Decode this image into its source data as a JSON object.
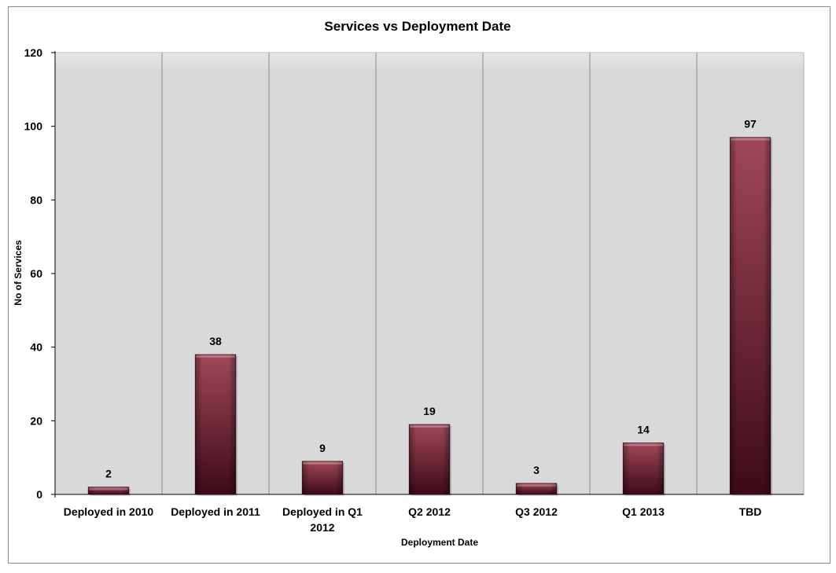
{
  "chart_data": {
    "type": "bar",
    "title": "Services vs Deployment Date",
    "xlabel": "Deployment Date",
    "ylabel": "No of Services",
    "categories": [
      "Deployed in 2010",
      "Deployed in 2011",
      "Deployed in Q1 2012",
      "Q2 2012",
      "Q3 2012",
      "Q1 2013",
      "TBD"
    ],
    "category_lines": [
      [
        "Deployed in 2010"
      ],
      [
        "Deployed in 2011"
      ],
      [
        "Deployed in Q1",
        "2012"
      ],
      [
        "Q2 2012"
      ],
      [
        "Q3 2012"
      ],
      [
        "Q1 2013"
      ],
      [
        "TBD"
      ]
    ],
    "values": [
      2,
      38,
      9,
      19,
      3,
      14,
      97
    ],
    "data_labels": [
      "2",
      "38",
      "9",
      "19",
      "3",
      "14",
      "97"
    ],
    "ylim": [
      0,
      120
    ],
    "yticks": [
      "0",
      "20",
      "40",
      "60",
      "80",
      "100",
      "120"
    ],
    "grid": "vertical category separators",
    "legend": "none",
    "colors": {
      "bar_top": "#a0485a",
      "bar_bottom": "#3e0a18",
      "plot_bg": "#d9d9d9"
    }
  }
}
